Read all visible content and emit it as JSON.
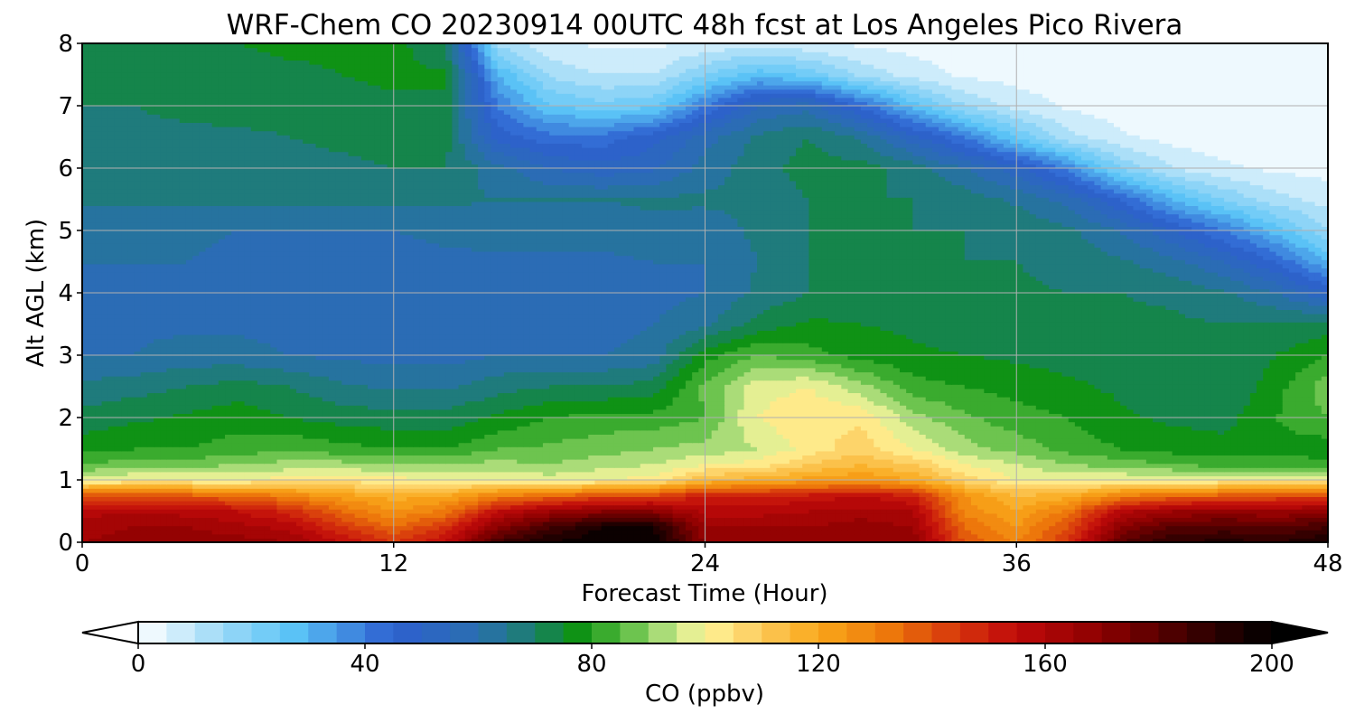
{
  "chart_data": {
    "type": "heatmap",
    "title": "WRF-Chem CO  20230914 00UTC 48h fcst at Los Angeles Pico Rivera",
    "xlabel": "Forecast Time (Hour)",
    "ylabel": "Alt AGL (km)",
    "xlim": [
      0,
      48
    ],
    "ylim": [
      0,
      8
    ],
    "xticks": [
      0,
      12,
      24,
      36,
      48
    ],
    "yticks": [
      0,
      1,
      2,
      3,
      4,
      5,
      6,
      7,
      8
    ],
    "grid": true,
    "colorbar": {
      "label": "CO  (ppbv)",
      "range": [
        0,
        200
      ],
      "step": 5,
      "ticks": [
        0,
        40,
        80,
        120,
        160,
        200
      ],
      "extend": "both",
      "stops": [
        {
          "v": 0,
          "c": "#ffffff"
        },
        {
          "v": 15,
          "c": "#9ad8f7"
        },
        {
          "v": 27,
          "c": "#5bc5f7"
        },
        {
          "v": 45,
          "c": "#2d5fcf"
        },
        {
          "v": 60,
          "c": "#2a6fb0"
        },
        {
          "v": 70,
          "c": "#1b7f6a"
        },
        {
          "v": 77,
          "c": "#0b8f12"
        },
        {
          "v": 85,
          "c": "#4fb83a"
        },
        {
          "v": 95,
          "c": "#c8e88c"
        },
        {
          "v": 100,
          "c": "#fff59a"
        },
        {
          "v": 110,
          "c": "#fcc95a"
        },
        {
          "v": 120,
          "c": "#f9a81a"
        },
        {
          "v": 132,
          "c": "#ee7a0b"
        },
        {
          "v": 145,
          "c": "#d5330c"
        },
        {
          "v": 155,
          "c": "#bf0a0a"
        },
        {
          "v": 170,
          "c": "#8b0000"
        },
        {
          "v": 185,
          "c": "#400000"
        },
        {
          "v": 200,
          "c": "#000000"
        }
      ]
    },
    "x": [
      0,
      2,
      4,
      6,
      8,
      10,
      12,
      14,
      16,
      18,
      20,
      22,
      24,
      26,
      28,
      30,
      32,
      34,
      36,
      38,
      40,
      42,
      44,
      46,
      48
    ],
    "y": [
      0,
      0.25,
      0.5,
      0.75,
      1,
      1.25,
      1.5,
      2,
      2.5,
      3,
      3.5,
      4,
      4.5,
      5,
      5.5,
      6,
      6.5,
      7,
      7.5,
      8
    ],
    "z": [
      [
        165,
        168,
        168,
        168,
        165,
        155,
        145,
        155,
        185,
        195,
        200,
        200,
        170,
        168,
        168,
        170,
        168,
        140,
        130,
        145,
        180,
        190,
        192,
        190,
        195
      ],
      [
        162,
        165,
        165,
        162,
        158,
        145,
        135,
        145,
        170,
        185,
        195,
        195,
        165,
        165,
        165,
        168,
        165,
        135,
        125,
        140,
        170,
        180,
        182,
        180,
        185
      ],
      [
        158,
        160,
        158,
        155,
        148,
        135,
        125,
        132,
        155,
        165,
        170,
        170,
        158,
        158,
        160,
        162,
        160,
        128,
        120,
        132,
        158,
        165,
        168,
        165,
        170
      ],
      [
        140,
        140,
        138,
        135,
        130,
        122,
        118,
        120,
        130,
        135,
        140,
        142,
        150,
        150,
        152,
        155,
        150,
        125,
        115,
        118,
        130,
        135,
        138,
        140,
        140
      ],
      [
        98,
        100,
        100,
        100,
        102,
        103,
        102,
        100,
        100,
        98,
        100,
        102,
        115,
        118,
        122,
        125,
        120,
        108,
        100,
        100,
        100,
        100,
        100,
        100,
        100
      ],
      [
        85,
        88,
        88,
        90,
        92,
        92,
        90,
        90,
        92,
        90,
        93,
        95,
        100,
        102,
        110,
        115,
        110,
        100,
        95,
        90,
        88,
        85,
        83,
        83,
        82
      ],
      [
        78,
        80,
        80,
        82,
        84,
        82,
        80,
        80,
        85,
        86,
        88,
        90,
        92,
        95,
        102,
        108,
        100,
        92,
        88,
        83,
        80,
        78,
        77,
        78,
        77
      ],
      [
        72,
        74,
        76,
        78,
        75,
        73,
        72,
        72,
        76,
        80,
        82,
        82,
        85,
        100,
        104,
        104,
        92,
        86,
        82,
        80,
        76,
        74,
        73,
        80,
        85
      ],
      [
        66,
        68,
        70,
        72,
        70,
        66,
        64,
        64,
        68,
        70,
        70,
        72,
        86,
        98,
        100,
        92,
        82,
        80,
        78,
        76,
        74,
        72,
        70,
        78,
        88
      ],
      [
        60,
        60,
        62,
        62,
        60,
        59,
        58,
        58,
        60,
        60,
        60,
        62,
        78,
        85,
        82,
        78,
        76,
        75,
        74,
        73,
        72,
        71,
        70,
        75,
        80
      ],
      [
        59,
        59,
        59,
        59,
        58,
        58,
        58,
        58,
        58,
        58,
        58,
        60,
        64,
        72,
        76,
        75,
        74,
        72,
        71,
        71,
        71,
        71,
        70,
        71,
        72
      ],
      [
        59,
        59,
        59,
        59,
        58,
        58,
        58,
        58,
        58,
        58,
        58,
        58,
        60,
        66,
        70,
        72,
        72,
        71,
        71,
        70,
        70,
        69,
        66,
        60,
        50
      ],
      [
        60,
        60,
        60,
        59,
        58,
        58,
        58,
        59,
        59,
        59,
        59,
        60,
        60,
        65,
        70,
        71,
        71,
        70,
        70,
        68,
        66,
        62,
        55,
        45,
        30
      ],
      [
        62,
        61,
        61,
        60,
        60,
        60,
        60,
        61,
        62,
        62,
        62,
        63,
        62,
        66,
        70,
        71,
        70,
        70,
        69,
        66,
        60,
        50,
        40,
        28,
        15
      ],
      [
        66,
        66,
        66,
        66,
        66,
        66,
        66,
        66,
        65,
        65,
        65,
        66,
        66,
        66,
        70,
        70,
        70,
        68,
        64,
        58,
        45,
        30,
        20,
        12,
        8
      ],
      [
        68,
        68,
        68,
        68,
        68,
        69,
        70,
        70,
        62,
        55,
        52,
        54,
        62,
        68,
        72,
        72,
        68,
        60,
        52,
        38,
        20,
        10,
        6,
        4,
        3
      ],
      [
        69,
        69,
        69,
        69,
        70,
        71,
        72,
        72,
        48,
        42,
        42,
        48,
        58,
        66,
        70,
        64,
        52,
        40,
        25,
        12,
        6,
        3,
        2,
        2,
        2
      ],
      [
        70,
        70,
        71,
        72,
        72,
        73,
        74,
        74,
        40,
        26,
        22,
        24,
        40,
        55,
        58,
        44,
        28,
        15,
        8,
        4,
        2,
        2,
        2,
        2,
        2
      ],
      [
        70,
        71,
        72,
        73,
        74,
        75,
        76,
        76,
        30,
        14,
        10,
        10,
        20,
        28,
        24,
        14,
        8,
        4,
        3,
        2,
        2,
        2,
        2,
        2,
        2
      ],
      [
        70,
        72,
        74,
        75,
        76,
        76,
        77,
        70,
        14,
        6,
        4,
        4,
        6,
        8,
        6,
        4,
        3,
        2,
        2,
        2,
        2,
        2,
        2,
        2,
        2
      ]
    ]
  }
}
